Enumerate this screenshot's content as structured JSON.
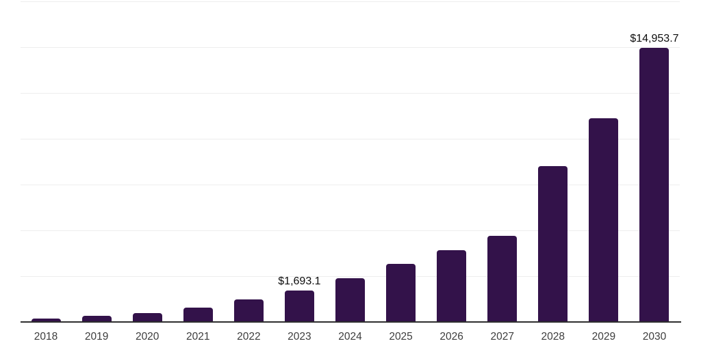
{
  "chart_data": {
    "type": "bar",
    "title": "",
    "xlabel": "",
    "ylabel": "",
    "categories": [
      "2018",
      "2019",
      "2020",
      "2021",
      "2022",
      "2023",
      "2024",
      "2025",
      "2026",
      "2027",
      "2028",
      "2029",
      "2030"
    ],
    "values": [
      150,
      310,
      460,
      770,
      1210,
      1693.1,
      2380,
      3150,
      3910,
      4680,
      8500,
      11090,
      14953.7
    ],
    "data_labels": [
      {
        "index": 5,
        "text": "$1,693.1"
      },
      {
        "index": 12,
        "text": "$14,953.7"
      }
    ],
    "ylim": [
      0,
      17500
    ],
    "gridline_step": 2500,
    "grid": "horizontal-only",
    "legend_position": "none",
    "y_axis_tick_labels": "none",
    "colors": {
      "bar": "#33124a",
      "gridline": "#ededed",
      "axis_line": "#2e2e2e",
      "value_label": "#0d0d0d",
      "tick_label": "#3d3d3d",
      "background": "#ffffff"
    }
  }
}
